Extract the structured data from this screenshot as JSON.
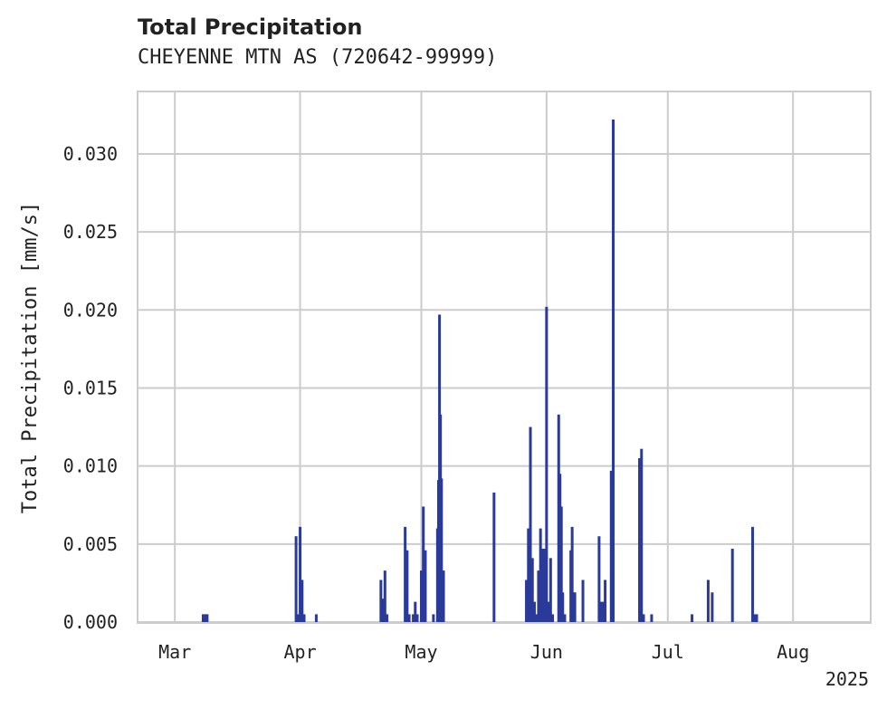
{
  "chart_data": {
    "type": "bar",
    "title": "Total Precipitation",
    "subtitle": "CHEYENNE MTN AS (720642-99999)",
    "xlabel": "",
    "ylabel": "Total Precipitation [mm/s]",
    "xlim": [
      "2025-02-20",
      "2025-08-20"
    ],
    "ylim": [
      0,
      0.034
    ],
    "x_ticks": [
      {
        "date": "2025-03-01",
        "label": "Mar"
      },
      {
        "date": "2025-04-01",
        "label": "Apr"
      },
      {
        "date": "2025-05-01",
        "label": "May"
      },
      {
        "date": "2025-06-01",
        "label": "Jun"
      },
      {
        "date": "2025-07-01",
        "label": "Jul"
      },
      {
        "date": "2025-08-01",
        "label": "Aug"
      }
    ],
    "x_offset_label": "2025",
    "y_ticks": [
      {
        "value": 0.0,
        "label": "0.000"
      },
      {
        "value": 0.005,
        "label": "0.005"
      },
      {
        "value": 0.01,
        "label": "0.010"
      },
      {
        "value": 0.015,
        "label": "0.015"
      },
      {
        "value": 0.02,
        "label": "0.020"
      },
      {
        "value": 0.025,
        "label": "0.025"
      },
      {
        "value": 0.03,
        "label": "0.030"
      }
    ],
    "grid": true,
    "bar_color": "#2b3a99",
    "points": [
      {
        "x": "2025-03-08",
        "y": 0.0005
      },
      {
        "x": "2025-03-08T12:00",
        "y": 0.0005
      },
      {
        "x": "2025-03-09",
        "y": 0.0005
      },
      {
        "x": "2025-03-31",
        "y": 0.0055
      },
      {
        "x": "2025-03-31T12:00",
        "y": 0.0005
      },
      {
        "x": "2025-04-01",
        "y": 0.0061
      },
      {
        "x": "2025-04-01T12:00",
        "y": 0.0027
      },
      {
        "x": "2025-04-02",
        "y": 0.0005
      },
      {
        "x": "2025-04-05",
        "y": 0.0005
      },
      {
        "x": "2025-04-21",
        "y": 0.0027
      },
      {
        "x": "2025-04-21T12:00",
        "y": 0.0015
      },
      {
        "x": "2025-04-22",
        "y": 0.0033
      },
      {
        "x": "2025-04-22T12:00",
        "y": 0.0005
      },
      {
        "x": "2025-04-27",
        "y": 0.0061
      },
      {
        "x": "2025-04-27T12:00",
        "y": 0.0046
      },
      {
        "x": "2025-04-28",
        "y": 0.0005
      },
      {
        "x": "2025-04-29",
        "y": 0.0005
      },
      {
        "x": "2025-04-29T12:00",
        "y": 0.0013
      },
      {
        "x": "2025-04-30",
        "y": 0.0005
      },
      {
        "x": "2025-05-01",
        "y": 0.0033
      },
      {
        "x": "2025-05-01T12:00",
        "y": 0.0074
      },
      {
        "x": "2025-05-02",
        "y": 0.0046
      },
      {
        "x": "2025-05-04",
        "y": 0.0005
      },
      {
        "x": "2025-05-05",
        "y": 0.006
      },
      {
        "x": "2025-05-05T06:00",
        "y": 0.0091
      },
      {
        "x": "2025-05-05T12:00",
        "y": 0.0197
      },
      {
        "x": "2025-05-05T18:00",
        "y": 0.0133
      },
      {
        "x": "2025-05-06",
        "y": 0.0092
      },
      {
        "x": "2025-05-06T06:00",
        "y": 0.0033
      },
      {
        "x": "2025-05-06T12:00",
        "y": 0.0033
      },
      {
        "x": "2025-05-19",
        "y": 0.0083
      },
      {
        "x": "2025-05-27",
        "y": 0.0027
      },
      {
        "x": "2025-05-27T12:00",
        "y": 0.006
      },
      {
        "x": "2025-05-28",
        "y": 0.0125
      },
      {
        "x": "2025-05-28T12:00",
        "y": 0.0041
      },
      {
        "x": "2025-05-29",
        "y": 0.0013
      },
      {
        "x": "2025-05-29T12:00",
        "y": 0.0005
      },
      {
        "x": "2025-05-30",
        "y": 0.0033
      },
      {
        "x": "2025-05-30T12:00",
        "y": 0.006
      },
      {
        "x": "2025-05-31",
        "y": 0.0047
      },
      {
        "x": "2025-05-31T12:00",
        "y": 0.0047
      },
      {
        "x": "2025-06-01",
        "y": 0.0202
      },
      {
        "x": "2025-06-01T12:00",
        "y": 0.0013
      },
      {
        "x": "2025-06-02",
        "y": 0.0041
      },
      {
        "x": "2025-06-02T12:00",
        "y": 0.0005
      },
      {
        "x": "2025-06-04",
        "y": 0.0133
      },
      {
        "x": "2025-06-04T08:00",
        "y": 0.0095
      },
      {
        "x": "2025-06-04T16:00",
        "y": 0.0074
      },
      {
        "x": "2025-06-05",
        "y": 0.0019
      },
      {
        "x": "2025-06-05T12:00",
        "y": 0.0005
      },
      {
        "x": "2025-06-07",
        "y": 0.0046
      },
      {
        "x": "2025-06-07T08:00",
        "y": 0.0061
      },
      {
        "x": "2025-06-07T16:00",
        "y": 0.0019
      },
      {
        "x": "2025-06-08",
        "y": 0.0019
      },
      {
        "x": "2025-06-10",
        "y": 0.0027
      },
      {
        "x": "2025-06-14",
        "y": 0.0055
      },
      {
        "x": "2025-06-14T12:00",
        "y": 0.0013
      },
      {
        "x": "2025-06-15",
        "y": 0.0013
      },
      {
        "x": "2025-06-15T12:00",
        "y": 0.0027
      },
      {
        "x": "2025-06-17",
        "y": 0.0097
      },
      {
        "x": "2025-06-17T12:00",
        "y": 0.0322
      },
      {
        "x": "2025-06-24",
        "y": 0.0105
      },
      {
        "x": "2025-06-24T12:00",
        "y": 0.0111
      },
      {
        "x": "2025-06-25",
        "y": 0.0005
      },
      {
        "x": "2025-06-27",
        "y": 0.0005
      },
      {
        "x": "2025-07-07",
        "y": 0.0005
      },
      {
        "x": "2025-07-11",
        "y": 0.0027
      },
      {
        "x": "2025-07-12",
        "y": 0.0019
      },
      {
        "x": "2025-07-17",
        "y": 0.0047
      },
      {
        "x": "2025-07-22",
        "y": 0.0061
      },
      {
        "x": "2025-07-22T12:00",
        "y": 0.0005
      },
      {
        "x": "2025-07-23",
        "y": 0.0005
      }
    ]
  }
}
